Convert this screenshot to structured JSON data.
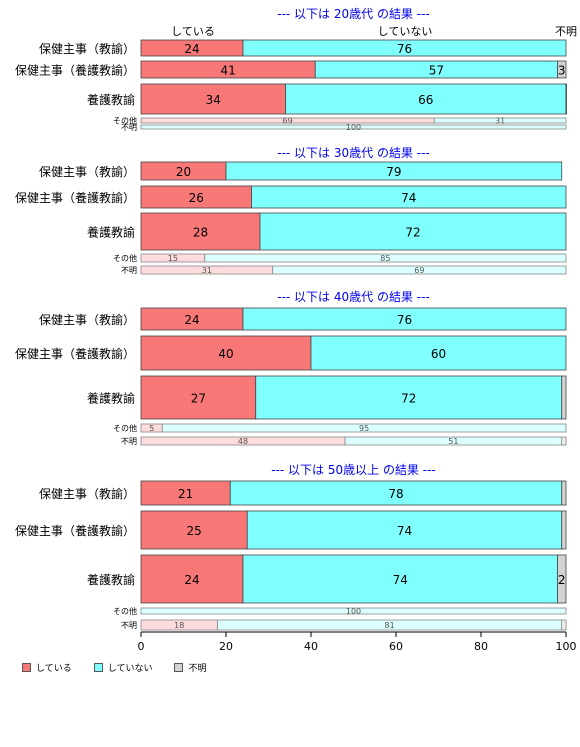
{
  "chart_data": {
    "type": "bar",
    "orientation": "horizontal-stacked-100",
    "legend_position": "bottom-left",
    "xlim": [
      0,
      100
    ],
    "x_ticks": [
      "0",
      "20",
      "40",
      "60",
      "80",
      "100"
    ],
    "top_labels": [
      "している",
      "していない",
      "不明"
    ],
    "series_names": [
      "している",
      "していない",
      "不明"
    ],
    "colors": {
      "main": [
        "#f87878",
        "#80ffff",
        "#d3d3d3"
      ],
      "light": [
        "#fcdcdc",
        "#dcffff",
        "#efefef"
      ],
      "title": "#0000ee"
    },
    "panels": [
      {
        "title": "--- 以下は 20歳代 の結果 ---",
        "rows": [
          {
            "label": "保健主事（教諭）",
            "values": [
              24,
              76,
              0
            ],
            "size": "large"
          },
          {
            "label": "保健主事（養護教諭）",
            "values": [
              41,
              57,
              3
            ],
            "size": "large"
          },
          {
            "label": "養護教諭",
            "values": [
              34,
              66,
              1
            ],
            "size": "large"
          },
          {
            "label": "その他",
            "values": [
              69,
              31,
              0
            ],
            "size": "small"
          },
          {
            "label": "不明",
            "values": [
              0,
              100,
              0
            ],
            "size": "small"
          }
        ]
      },
      {
        "title": "--- 以下は 30歳代 の結果 ---",
        "rows": [
          {
            "label": "保健主事（教諭）",
            "values": [
              20,
              79,
              0
            ],
            "size": "large"
          },
          {
            "label": "保健主事（養護教諭）",
            "values": [
              26,
              74,
              0
            ],
            "size": "large"
          },
          {
            "label": "養護教諭",
            "values": [
              28,
              72,
              0
            ],
            "size": "large"
          },
          {
            "label": "その他",
            "values": [
              15,
              85,
              0
            ],
            "size": "small"
          },
          {
            "label": "不明",
            "values": [
              31,
              69,
              0
            ],
            "size": "small"
          }
        ]
      },
      {
        "title": "--- 以下は 40歳代 の結果 ---",
        "rows": [
          {
            "label": "保健主事（教諭）",
            "values": [
              24,
              76,
              0
            ],
            "size": "large"
          },
          {
            "label": "保健主事（養護教諭）",
            "values": [
              40,
              60,
              0
            ],
            "size": "large"
          },
          {
            "label": "養護教諭",
            "values": [
              27,
              72,
              1
            ],
            "size": "large"
          },
          {
            "label": "その他",
            "values": [
              5,
              95,
              0
            ],
            "size": "small"
          },
          {
            "label": "不明",
            "values": [
              48,
              51,
              1
            ],
            "size": "small"
          }
        ]
      },
      {
        "title": "--- 以下は 50歳以上 の結果 ---",
        "rows": [
          {
            "label": "保健主事（教諭）",
            "values": [
              21,
              78,
              1
            ],
            "size": "large"
          },
          {
            "label": "保健主事（養護教諭）",
            "values": [
              25,
              74,
              1
            ],
            "size": "large"
          },
          {
            "label": "養護教諭",
            "values": [
              24,
              74,
              2
            ],
            "size": "large"
          },
          {
            "label": "その他",
            "values": [
              0,
              100,
              0
            ],
            "size": "small"
          },
          {
            "label": "不明",
            "values": [
              18,
              81,
              1
            ],
            "size": "small"
          }
        ]
      }
    ]
  }
}
